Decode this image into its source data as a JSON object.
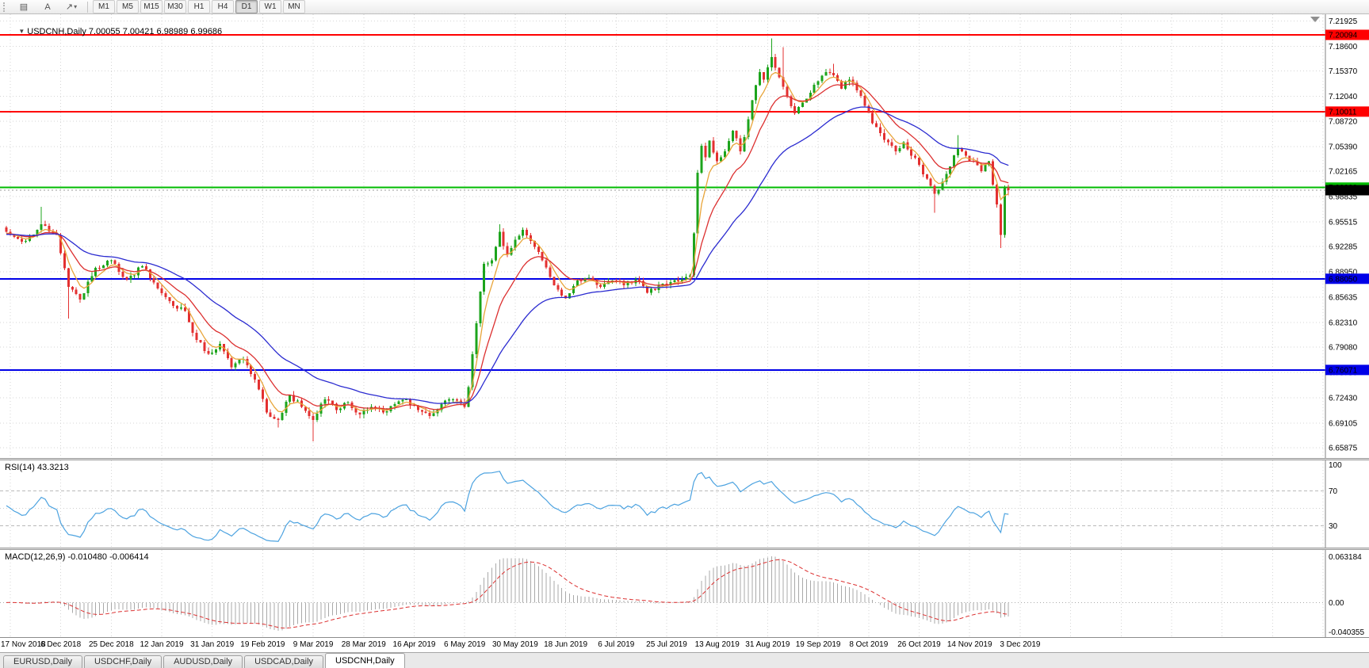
{
  "toolbar": {
    "icons": [
      {
        "name": "chart-window-icon",
        "glyph": "▤"
      },
      {
        "name": "cursor-tool-icon",
        "glyph": "A"
      },
      {
        "name": "arrow-draw-icon",
        "glyph": "↗"
      },
      {
        "name": "caret-down-icon",
        "glyph": "▾"
      }
    ],
    "timeframes": [
      "M1",
      "M5",
      "M15",
      "M30",
      "H1",
      "H4",
      "D1",
      "W1",
      "MN"
    ],
    "active_timeframe": "D1"
  },
  "chart": {
    "title": "USDCNH,Daily 7.00055 7.00421 6.98989 6.99686",
    "dropdown_glyph": "▼"
  },
  "rsi_panel": {
    "label": "RSI(14) 43.3213"
  },
  "macd_panel": {
    "label": "MACD(12,26,9) -0.010480 -0.006414"
  },
  "tabs": {
    "items": [
      "EURUSD,Daily",
      "USDCHF,Daily",
      "AUDUSD,Daily",
      "USDCAD,Daily",
      "USDCNH,Daily"
    ],
    "active": "USDCNH,Daily"
  },
  "chart_data": {
    "type": "candlestick",
    "symbol": "USDCNH",
    "period": "Daily",
    "ohlc_current": {
      "open": 7.00055,
      "high": 7.00421,
      "low": 6.98989,
      "close": 6.99686
    },
    "ylim": [
      6.645,
      7.228
    ],
    "price_axis": [
      "7.21925",
      "7.18600",
      "7.15370",
      "7.12040",
      "7.08720",
      "7.05390",
      "7.02165",
      "6.98835",
      "6.95515",
      "6.92285",
      "6.88950",
      "6.85635",
      "6.82310",
      "6.79080",
      "6.75750",
      "6.72430",
      "6.69105",
      "6.65875"
    ],
    "date_axis": [
      "17 Nov 2018",
      "6 Dec 2018",
      "25 Dec 2018",
      "12 Jan 2019",
      "31 Jan 2019",
      "19 Feb 2019",
      "9 Mar 2019",
      "28 Mar 2019",
      "16 Apr 2019",
      "6 May 2019",
      "30 May 2019",
      "18 Jun 2019",
      "6 Jul 2019",
      "25 Jul 2019",
      "13 Aug 2019",
      "31 Aug 2019",
      "19 Sep 2019",
      "8 Oct 2019",
      "26 Oct 2019",
      "14 Nov 2019",
      "3 Dec 2019"
    ],
    "levels": [
      {
        "value": 7.20094,
        "label": "7.20094",
        "color": "#FF0000",
        "kind": "resistance-line"
      },
      {
        "value": 7.10011,
        "label": "7.10011",
        "color": "#FF0000",
        "kind": "resistance-line"
      },
      {
        "value": 7.00029,
        "label": "7.00029",
        "color": "#00BB00",
        "kind": "key-level-line"
      },
      {
        "value": 6.8805,
        "label": "6.88050",
        "color": "#0000E8",
        "kind": "support-line"
      },
      {
        "value": 6.76071,
        "label": "6.76071",
        "color": "#0000E8",
        "kind": "support-line"
      }
    ],
    "last_price": {
      "value": 6.99686,
      "label": "6.99686",
      "box_color": "#000000"
    },
    "candles": {
      "count": 259,
      "anchors": [
        [
          0,
          6.942
        ],
        [
          5,
          6.93
        ],
        [
          9,
          6.952
        ],
        [
          13,
          6.938
        ],
        [
          16,
          6.87
        ],
        [
          19,
          6.853
        ],
        [
          23,
          6.895
        ],
        [
          27,
          6.905
        ],
        [
          31,
          6.88
        ],
        [
          35,
          6.897
        ],
        [
          39,
          6.868
        ],
        [
          43,
          6.845
        ],
        [
          46,
          6.838
        ],
        [
          49,
          6.8
        ],
        [
          52,
          6.782
        ],
        [
          55,
          6.795
        ],
        [
          58,
          6.764
        ],
        [
          61,
          6.775
        ],
        [
          64,
          6.748
        ],
        [
          67,
          6.705
        ],
        [
          70,
          6.695
        ],
        [
          73,
          6.728
        ],
        [
          76,
          6.712
        ],
        [
          79,
          6.695
        ],
        [
          82,
          6.722
        ],
        [
          85,
          6.708
        ],
        [
          88,
          6.718
        ],
        [
          91,
          6.702
        ],
        [
          94,
          6.712
        ],
        [
          97,
          6.705
        ],
        [
          100,
          6.716
        ],
        [
          103,
          6.722
        ],
        [
          106,
          6.708
        ],
        [
          109,
          6.7
        ],
        [
          112,
          6.716
        ],
        [
          115,
          6.722
        ],
        [
          118,
          6.712
        ],
        [
          119,
          6.738
        ],
        [
          121,
          6.822
        ],
        [
          123,
          6.9
        ],
        [
          125,
          6.905
        ],
        [
          127,
          6.942
        ],
        [
          129,
          6.912
        ],
        [
          131,
          6.932
        ],
        [
          133,
          6.945
        ],
        [
          135,
          6.93
        ],
        [
          138,
          6.905
        ],
        [
          141,
          6.872
        ],
        [
          144,
          6.855
        ],
        [
          147,
          6.878
        ],
        [
          150,
          6.882
        ],
        [
          153,
          6.87
        ],
        [
          156,
          6.878
        ],
        [
          159,
          6.872
        ],
        [
          162,
          6.88
        ],
        [
          165,
          6.862
        ],
        [
          168,
          6.872
        ],
        [
          171,
          6.876
        ],
        [
          174,
          6.88
        ],
        [
          176,
          6.885
        ],
        [
          177,
          6.94
        ],
        [
          178,
          7.02
        ],
        [
          179,
          7.055
        ],
        [
          180,
          7.04
        ],
        [
          181,
          7.062
        ],
        [
          183,
          7.035
        ],
        [
          185,
          7.048
        ],
        [
          187,
          7.075
        ],
        [
          189,
          7.048
        ],
        [
          191,
          7.09
        ],
        [
          192,
          7.115
        ],
        [
          193,
          7.135
        ],
        [
          194,
          7.152
        ],
        [
          195,
          7.142
        ],
        [
          196,
          7.158
        ],
        [
          197,
          7.172
        ],
        [
          199,
          7.145
        ],
        [
          201,
          7.12
        ],
        [
          203,
          7.098
        ],
        [
          205,
          7.112
        ],
        [
          207,
          7.125
        ],
        [
          209,
          7.14
        ],
        [
          211,
          7.152
        ],
        [
          213,
          7.148
        ],
        [
          215,
          7.13
        ],
        [
          217,
          7.142
        ],
        [
          219,
          7.128
        ],
        [
          221,
          7.108
        ],
        [
          223,
          7.085
        ],
        [
          225,
          7.072
        ],
        [
          227,
          7.06
        ],
        [
          229,
          7.048
        ],
        [
          231,
          7.06
        ],
        [
          233,
          7.042
        ],
        [
          235,
          7.03
        ],
        [
          237,
          7.012
        ],
        [
          239,
          6.992
        ],
        [
          241,
          7.008
        ],
        [
          243,
          7.028
        ],
        [
          245,
          7.052
        ],
        [
          247,
          7.042
        ],
        [
          249,
          7.035
        ],
        [
          251,
          7.022
        ],
        [
          253,
          7.035
        ],
        [
          255,
          6.978
        ],
        [
          256,
          6.938
        ],
        [
          257,
          7.0
        ],
        [
          258,
          6.99686
        ]
      ],
      "wicks": [
        [
          9,
          "h",
          6.975
        ],
        [
          16,
          "l",
          6.828
        ],
        [
          70,
          "l",
          6.685
        ],
        [
          79,
          "l",
          6.667
        ],
        [
          127,
          "h",
          6.952
        ],
        [
          197,
          "h",
          7.196
        ],
        [
          200,
          "h",
          7.185
        ],
        [
          213,
          "h",
          7.163
        ],
        [
          239,
          "l",
          6.967
        ],
        [
          245,
          "h",
          7.069
        ],
        [
          256,
          "l",
          6.921
        ]
      ]
    },
    "moving_averages": [
      {
        "period": 5,
        "type": "ema",
        "color": "#E8A53A"
      },
      {
        "period": 13,
        "type": "ema",
        "color": "#DC3030"
      },
      {
        "period": 34,
        "type": "ema",
        "color": "#2B2BD0"
      }
    ],
    "rsi": {
      "period": 14,
      "value": 43.3213,
      "axis": [
        "100",
        "70",
        "30"
      ],
      "levels": [
        70,
        50,
        30
      ],
      "color": "#4DA3E0"
    },
    "macd": {
      "fast": 12,
      "slow": 26,
      "signal": 9,
      "value": -0.01048,
      "signal_value": -0.006414,
      "axis": [
        "0.063184",
        "0.00",
        "-0.040355"
      ],
      "histogram_color": "#A9A9A9",
      "signal_color": "#DC3030"
    },
    "colors": {
      "up": "#1CA41C",
      "down": "#E33030",
      "grid": "#D6D6D6",
      "background": "#FFFFFF"
    }
  }
}
